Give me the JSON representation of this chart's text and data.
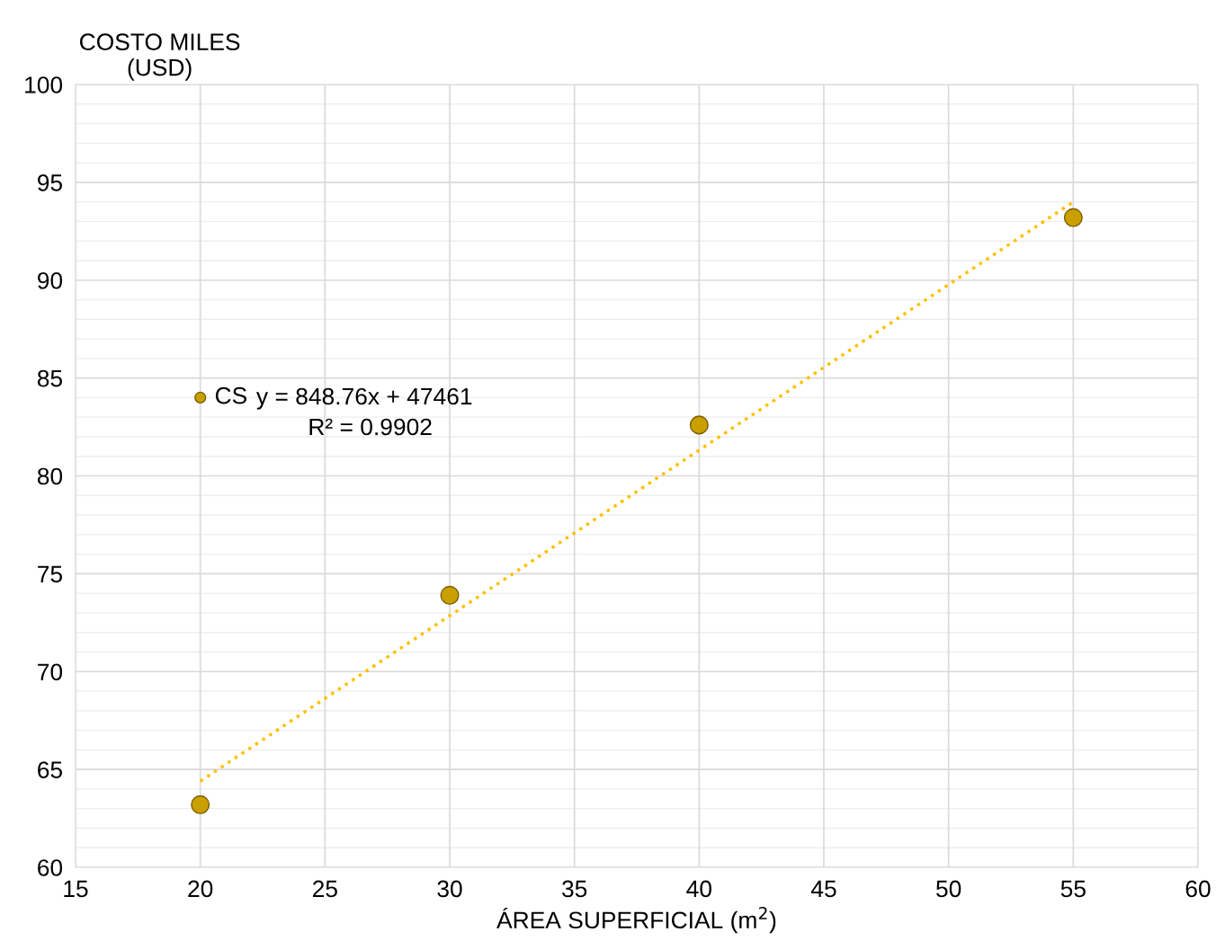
{
  "chart_data": {
    "type": "scatter",
    "xlabel": "ÁREA SUPERFICIAL (m$^{2}$)",
    "ylabel": "COSTO MILES\n(USD)",
    "xlim": [
      15,
      60
    ],
    "xticks": [
      15,
      20,
      25,
      30,
      35,
      40,
      45,
      50,
      55,
      60
    ],
    "ylim": [
      60,
      100
    ],
    "yticks": [
      60,
      {
        "value": 61,
        "label": null
      },
      {
        "value": 62,
        "label": null
      },
      {
        "value": 63,
        "label": null
      },
      {
        "value": 64,
        "label": null
      },
      65,
      {
        "value": 66,
        "label": null
      },
      {
        "value": 67,
        "label": null
      },
      {
        "value": 68,
        "label": null
      },
      {
        "value": 69,
        "label": null
      },
      70,
      {
        "value": 71,
        "label": null
      },
      {
        "value": 72,
        "label": null
      },
      {
        "value": 73,
        "label": null
      },
      {
        "value": 74,
        "label": null
      },
      75,
      {
        "value": 76,
        "label": null
      },
      {
        "value": 77,
        "label": null
      },
      {
        "value": 78,
        "label": null
      },
      {
        "value": 79,
        "label": null
      },
      80,
      {
        "value": 81,
        "label": null
      },
      {
        "value": 82,
        "label": null
      },
      {
        "value": 83,
        "label": null
      },
      {
        "value": 84,
        "label": null
      },
      85,
      {
        "value": 86,
        "label": null
      },
      {
        "value": 87,
        "label": null
      },
      {
        "value": 88,
        "label": null
      },
      {
        "value": 89,
        "label": null
      },
      90,
      {
        "value": 91,
        "label": null
      },
      {
        "value": 92,
        "label": null
      },
      {
        "value": 93,
        "label": null
      },
      {
        "value": 94,
        "label": null
      },
      95,
      {
        "value": 96,
        "label": null
      },
      {
        "value": 97,
        "label": null
      },
      {
        "value": 98,
        "label": null
      },
      {
        "value": 99,
        "label": null
      },
      100
    ],
    "grid": true,
    "legend": "left",
    "marker": "circle",
    "series": [
      {
        "name": "CS",
        "color": "#c9a000",
        "x": [
          20,
          30,
          40,
          55
        ],
        "values": [
          63.2,
          73.9,
          82.6,
          93.2
        ]
      },
      {
        "type": "line",
        "color": "#ffc000",
        "line_style": "dotted",
        "marker": "none",
        "x": [
          20,
          55
        ],
        "values": [
          64.4,
          94.0
        ]
      }
    ],
    "annotations": [
      "y = 848.76x + 47461",
      "R² = 0.9902"
    ]
  }
}
